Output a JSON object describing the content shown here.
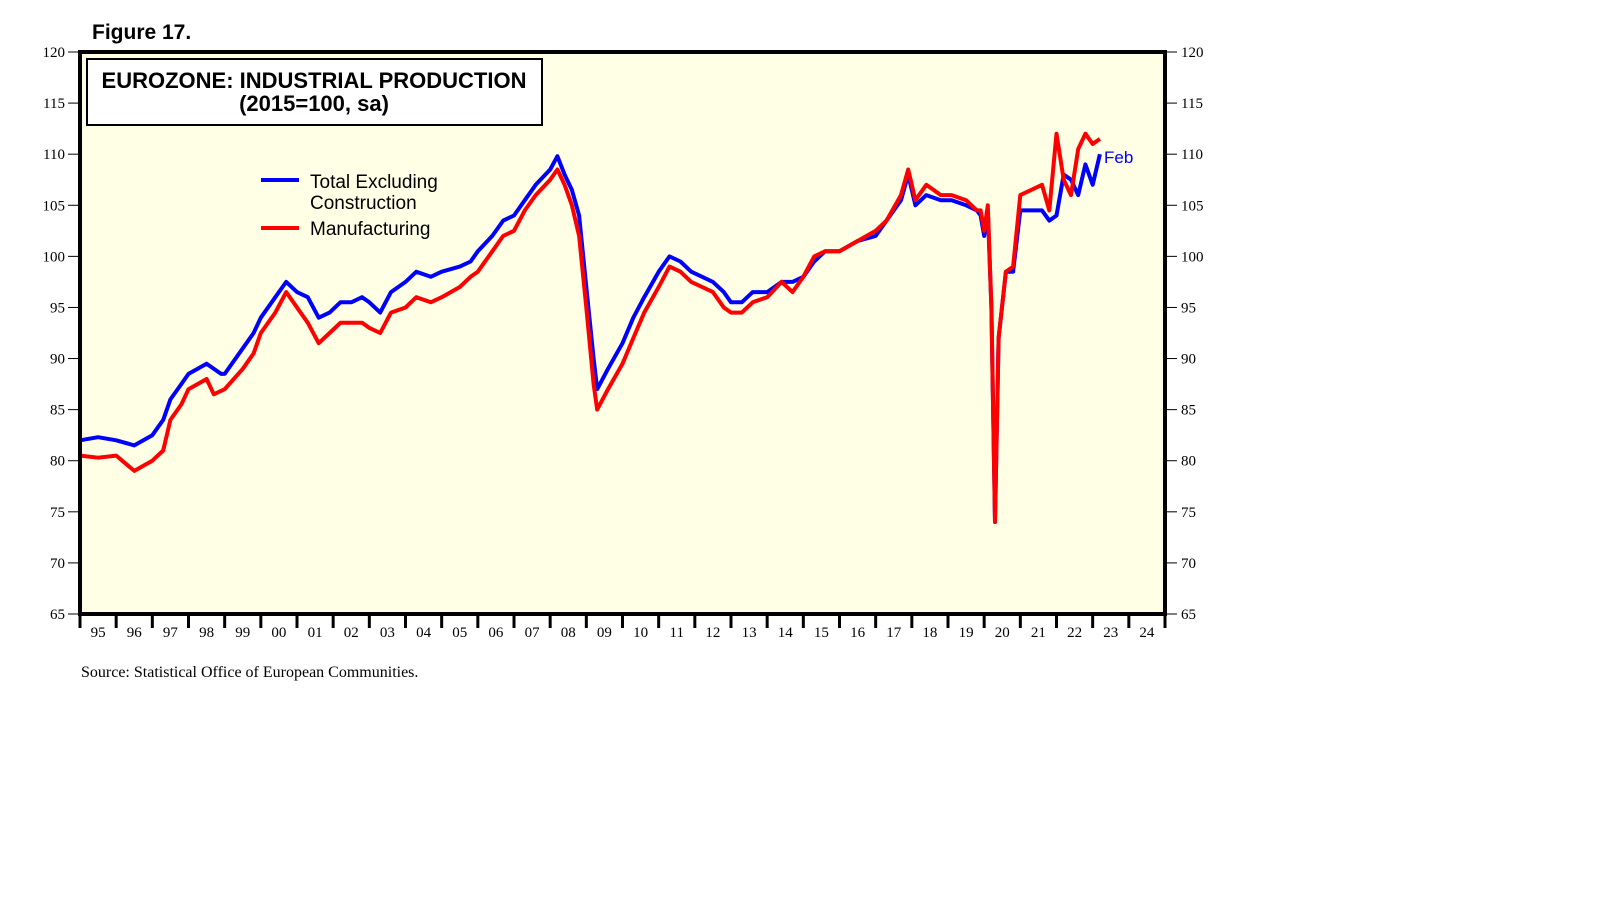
{
  "figure_label": "Figure 17.",
  "source": "Source: Statistical Office of European Communities.",
  "chart_data": {
    "type": "line",
    "title": [
      "EUROZONE: INDUSTRIAL PRODUCTION",
      "(2015=100, sa)"
    ],
    "ylim": [
      65,
      120
    ],
    "yticks": [
      65,
      70,
      75,
      80,
      85,
      90,
      95,
      100,
      105,
      110,
      115,
      120
    ],
    "xlim": [
      1995,
      2025
    ],
    "xtick_labels": [
      "95",
      "96",
      "97",
      "98",
      "99",
      "00",
      "01",
      "02",
      "03",
      "04",
      "05",
      "06",
      "07",
      "08",
      "09",
      "10",
      "11",
      "12",
      "13",
      "14",
      "15",
      "16",
      "17",
      "18",
      "19",
      "20",
      "21",
      "22",
      "23",
      "24"
    ],
    "grid": false,
    "background": "#ffffe6",
    "legend_placement": "top-left",
    "end_annotation": "Feb",
    "series": [
      {
        "name": "Total Excluding Construction",
        "legend_lines": [
          "Total Excluding",
          "Construction"
        ],
        "color": "#0000ff",
        "points": [
          [
            1995.0,
            82
          ],
          [
            1995.5,
            82.3
          ],
          [
            1996.0,
            82
          ],
          [
            1996.5,
            81.5
          ],
          [
            1997.0,
            82.5
          ],
          [
            1997.3,
            84
          ],
          [
            1997.5,
            86
          ],
          [
            1997.8,
            87.5
          ],
          [
            1998.0,
            88.5
          ],
          [
            1998.5,
            89.5
          ],
          [
            1998.9,
            88.5
          ],
          [
            1999.0,
            88.5
          ],
          [
            1999.5,
            91
          ],
          [
            1999.8,
            92.5
          ],
          [
            2000.0,
            94
          ],
          [
            2000.4,
            96
          ],
          [
            2000.7,
            97.5
          ],
          [
            2001.0,
            96.5
          ],
          [
            2001.3,
            96
          ],
          [
            2001.6,
            94
          ],
          [
            2001.9,
            94.5
          ],
          [
            2002.2,
            95.5
          ],
          [
            2002.5,
            95.5
          ],
          [
            2002.8,
            96
          ],
          [
            2003.0,
            95.5
          ],
          [
            2003.3,
            94.5
          ],
          [
            2003.6,
            96.5
          ],
          [
            2004.0,
            97.5
          ],
          [
            2004.3,
            98.5
          ],
          [
            2004.7,
            98
          ],
          [
            2005.0,
            98.5
          ],
          [
            2005.5,
            99
          ],
          [
            2005.8,
            99.5
          ],
          [
            2006.0,
            100.5
          ],
          [
            2006.4,
            102
          ],
          [
            2006.7,
            103.5
          ],
          [
            2007.0,
            104
          ],
          [
            2007.3,
            105.5
          ],
          [
            2007.6,
            107
          ],
          [
            2008.0,
            108.5
          ],
          [
            2008.2,
            109.8
          ],
          [
            2008.4,
            108
          ],
          [
            2008.6,
            106.5
          ],
          [
            2008.8,
            104
          ],
          [
            2009.0,
            97
          ],
          [
            2009.2,
            90
          ],
          [
            2009.3,
            87
          ],
          [
            2009.6,
            89
          ],
          [
            2010.0,
            91.5
          ],
          [
            2010.3,
            94
          ],
          [
            2010.6,
            96
          ],
          [
            2011.0,
            98.5
          ],
          [
            2011.3,
            100
          ],
          [
            2011.6,
            99.5
          ],
          [
            2011.9,
            98.5
          ],
          [
            2012.2,
            98
          ],
          [
            2012.5,
            97.5
          ],
          [
            2012.8,
            96.5
          ],
          [
            2013.0,
            95.5
          ],
          [
            2013.3,
            95.5
          ],
          [
            2013.6,
            96.5
          ],
          [
            2014.0,
            96.5
          ],
          [
            2014.4,
            97.5
          ],
          [
            2014.7,
            97.5
          ],
          [
            2015.0,
            98
          ],
          [
            2015.3,
            99.5
          ],
          [
            2015.6,
            100.5
          ],
          [
            2016.0,
            100.5
          ],
          [
            2016.5,
            101.5
          ],
          [
            2017.0,
            102
          ],
          [
            2017.3,
            103.5
          ],
          [
            2017.7,
            105.5
          ],
          [
            2017.9,
            108
          ],
          [
            2018.1,
            105
          ],
          [
            2018.4,
            106
          ],
          [
            2018.8,
            105.5
          ],
          [
            2019.1,
            105.5
          ],
          [
            2019.5,
            105
          ],
          [
            2019.8,
            104.5
          ],
          [
            2019.9,
            104
          ],
          [
            2020.0,
            102
          ],
          [
            2020.1,
            104.5
          ],
          [
            2020.2,
            95
          ],
          [
            2020.3,
            74
          ],
          [
            2020.4,
            92
          ],
          [
            2020.6,
            98.5
          ],
          [
            2020.8,
            98.5
          ],
          [
            2021.0,
            104.5
          ],
          [
            2021.3,
            104.5
          ],
          [
            2021.6,
            104.5
          ],
          [
            2021.8,
            103.5
          ],
          [
            2022.0,
            104
          ],
          [
            2022.2,
            108
          ],
          [
            2022.4,
            107.5
          ],
          [
            2022.6,
            106
          ],
          [
            2022.8,
            109
          ],
          [
            2023.0,
            107
          ],
          [
            2023.2,
            110
          ]
        ]
      },
      {
        "name": "Manufacturing",
        "legend_lines": [
          "Manufacturing"
        ],
        "color": "#ff0000",
        "points": [
          [
            1995.0,
            80.5
          ],
          [
            1995.5,
            80.3
          ],
          [
            1996.0,
            80.5
          ],
          [
            1996.5,
            79
          ],
          [
            1997.0,
            80
          ],
          [
            1997.3,
            81
          ],
          [
            1997.5,
            84
          ],
          [
            1997.8,
            85.5
          ],
          [
            1998.0,
            87
          ],
          [
            1998.5,
            88
          ],
          [
            1998.7,
            86.5
          ],
          [
            1999.0,
            87
          ],
          [
            1999.5,
            89
          ],
          [
            1999.8,
            90.5
          ],
          [
            2000.0,
            92.5
          ],
          [
            2000.4,
            94.5
          ],
          [
            2000.7,
            96.5
          ],
          [
            2001.0,
            95
          ],
          [
            2001.3,
            93.5
          ],
          [
            2001.6,
            91.5
          ],
          [
            2001.9,
            92.5
          ],
          [
            2002.2,
            93.5
          ],
          [
            2002.5,
            93.5
          ],
          [
            2002.8,
            93.5
          ],
          [
            2003.0,
            93
          ],
          [
            2003.3,
            92.5
          ],
          [
            2003.6,
            94.5
          ],
          [
            2004.0,
            95
          ],
          [
            2004.3,
            96
          ],
          [
            2004.7,
            95.5
          ],
          [
            2005.0,
            96
          ],
          [
            2005.5,
            97
          ],
          [
            2005.8,
            98
          ],
          [
            2006.0,
            98.5
          ],
          [
            2006.4,
            100.5
          ],
          [
            2006.7,
            102
          ],
          [
            2007.0,
            102.5
          ],
          [
            2007.3,
            104.5
          ],
          [
            2007.6,
            106
          ],
          [
            2008.0,
            107.5
          ],
          [
            2008.2,
            108.5
          ],
          [
            2008.4,
            107
          ],
          [
            2008.6,
            105
          ],
          [
            2008.8,
            102
          ],
          [
            2009.0,
            95
          ],
          [
            2009.2,
            87.5
          ],
          [
            2009.3,
            85
          ],
          [
            2009.6,
            87
          ],
          [
            2010.0,
            89.5
          ],
          [
            2010.3,
            92
          ],
          [
            2010.6,
            94.5
          ],
          [
            2011.0,
            97
          ],
          [
            2011.3,
            99
          ],
          [
            2011.6,
            98.5
          ],
          [
            2011.9,
            97.5
          ],
          [
            2012.2,
            97
          ],
          [
            2012.5,
            96.5
          ],
          [
            2012.8,
            95
          ],
          [
            2013.0,
            94.5
          ],
          [
            2013.3,
            94.5
          ],
          [
            2013.6,
            95.5
          ],
          [
            2014.0,
            96
          ],
          [
            2014.4,
            97.5
          ],
          [
            2014.7,
            96.5
          ],
          [
            2015.0,
            98
          ],
          [
            2015.3,
            100
          ],
          [
            2015.6,
            100.5
          ],
          [
            2016.0,
            100.5
          ],
          [
            2016.5,
            101.5
          ],
          [
            2017.0,
            102.5
          ],
          [
            2017.3,
            103.5
          ],
          [
            2017.7,
            106
          ],
          [
            2017.9,
            108.5
          ],
          [
            2018.1,
            105.5
          ],
          [
            2018.4,
            107
          ],
          [
            2018.8,
            106
          ],
          [
            2019.1,
            106
          ],
          [
            2019.5,
            105.5
          ],
          [
            2019.8,
            104.5
          ],
          [
            2019.9,
            104.5
          ],
          [
            2020.0,
            102.5
          ],
          [
            2020.1,
            105
          ],
          [
            2020.2,
            95
          ],
          [
            2020.3,
            74
          ],
          [
            2020.4,
            92
          ],
          [
            2020.6,
            98.5
          ],
          [
            2020.8,
            99
          ],
          [
            2021.0,
            106
          ],
          [
            2021.3,
            106.5
          ],
          [
            2021.6,
            107
          ],
          [
            2021.8,
            104.5
          ],
          [
            2022.0,
            112
          ],
          [
            2022.2,
            107.5
          ],
          [
            2022.4,
            106
          ],
          [
            2022.6,
            110.5
          ],
          [
            2022.8,
            112
          ],
          [
            2023.0,
            111
          ],
          [
            2023.2,
            111.5
          ]
        ]
      }
    ]
  }
}
